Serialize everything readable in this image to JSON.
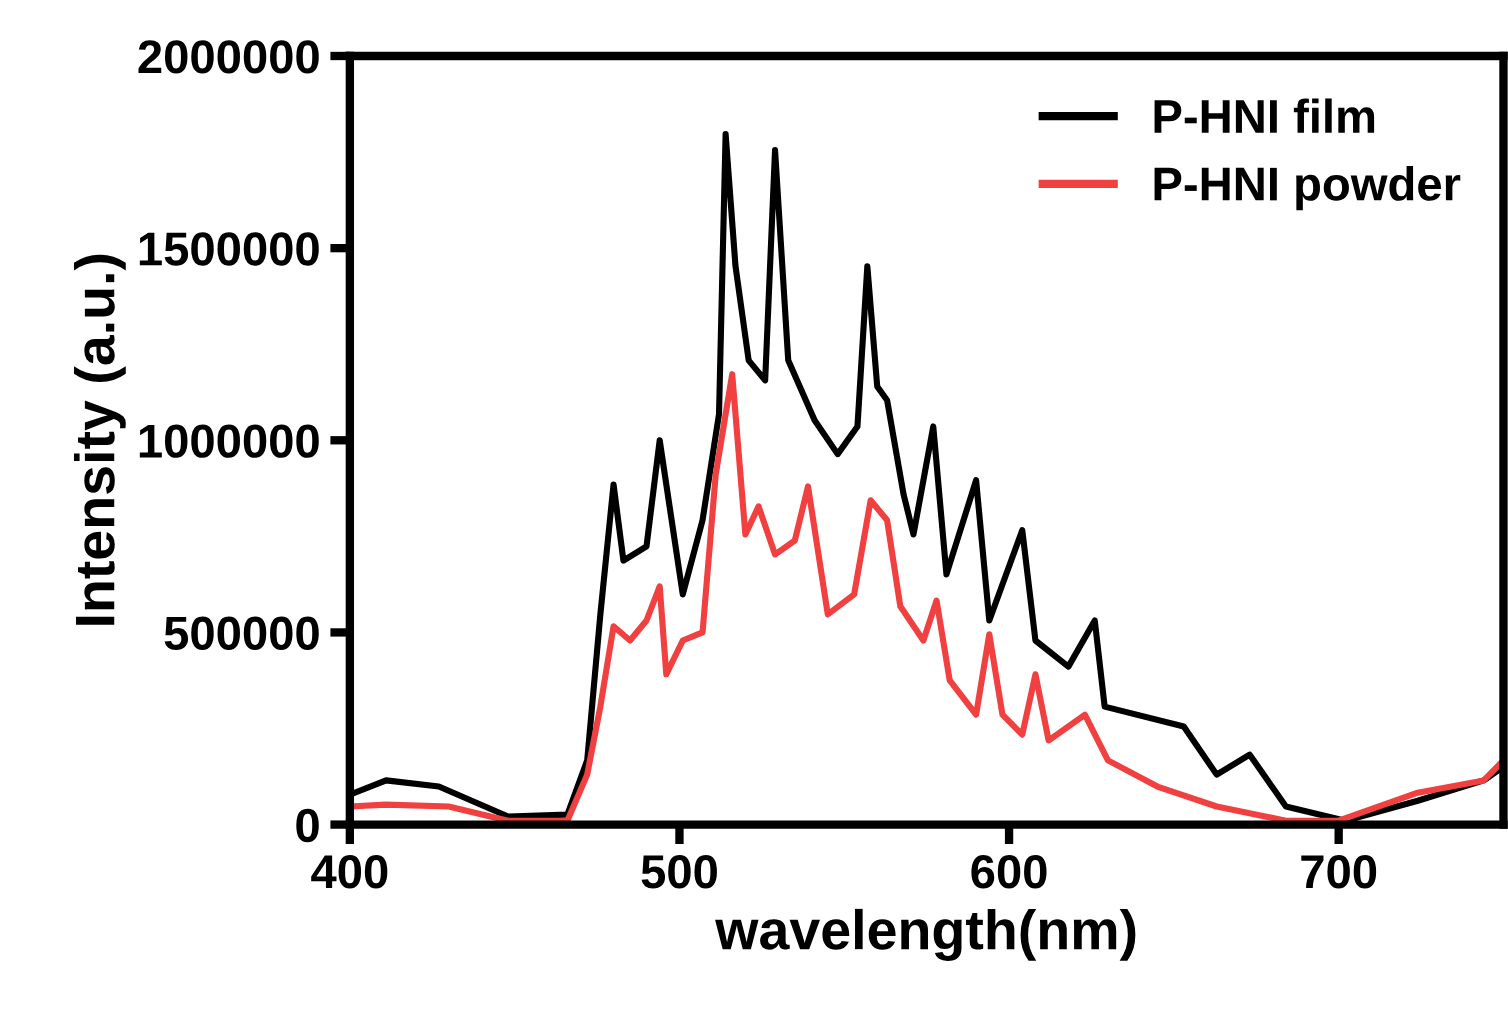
{
  "chart_data": {
    "type": "line",
    "xlabel": "wavelength(nm)",
    "ylabel": "Intensity (a.u.)",
    "xlim": [
      400,
      750
    ],
    "xticks": [
      400,
      500,
      600,
      700
    ],
    "ylim": [
      0,
      2000000
    ],
    "yticks": [
      0,
      500000,
      1000000,
      1500000,
      2000000
    ],
    "grid": false,
    "legend": "top right",
    "marker": "none",
    "line_style": "solid",
    "series": [
      {
        "name": "P-HNI film",
        "color": "#000000",
        "x": [
          400,
          411,
          427,
          448,
          466,
          472,
          476,
          480,
          483,
          490,
          494,
          501,
          507,
          512,
          514,
          517,
          521,
          526,
          529,
          533,
          541,
          548,
          554,
          557,
          560,
          563,
          568,
          571,
          577,
          581,
          590,
          594,
          604,
          608,
          618,
          626,
          629,
          653,
          663,
          673,
          684,
          702,
          724,
          744,
          750
        ],
        "values": [
          78000,
          115000,
          99000,
          21000,
          26000,
          167000,
          547000,
          885000,
          687000,
          724000,
          1000000,
          599000,
          792000,
          1068000,
          1797000,
          1453000,
          1208000,
          1156000,
          1755000,
          1208000,
          1052000,
          964000,
          1036000,
          1453000,
          1140000,
          1104000,
          859000,
          755000,
          1036000,
          651000,
          896000,
          531000,
          766000,
          479000,
          411000,
          531000,
          307000,
          255000,
          130000,
          182000,
          47000,
          10000,
          62000,
          115000,
          151000
        ]
      },
      {
        "name": "P-HNI powder",
        "color": "#f04040",
        "x": [
          400,
          411,
          430,
          448,
          466,
          472,
          476,
          480,
          485,
          490,
          494,
          496,
          501,
          507,
          511,
          514,
          516,
          520,
          524,
          529,
          535,
          539,
          545,
          553,
          558,
          563,
          567,
          574,
          578,
          582,
          590,
          594,
          598,
          604,
          608,
          612,
          623,
          630,
          645,
          663,
          684,
          700,
          724,
          744,
          750
        ],
        "values": [
          47000,
          52000,
          47000,
          10000,
          10000,
          130000,
          307000,
          516000,
          479000,
          531000,
          620000,
          391000,
          479000,
          500000,
          911000,
          1068000,
          1172000,
          755000,
          828000,
          703000,
          739000,
          880000,
          547000,
          599000,
          844000,
          792000,
          568000,
          479000,
          583000,
          375000,
          286000,
          495000,
          286000,
          234000,
          391000,
          219000,
          286000,
          167000,
          99000,
          47000,
          10000,
          10000,
          83000,
          115000,
          167000
        ]
      }
    ]
  }
}
